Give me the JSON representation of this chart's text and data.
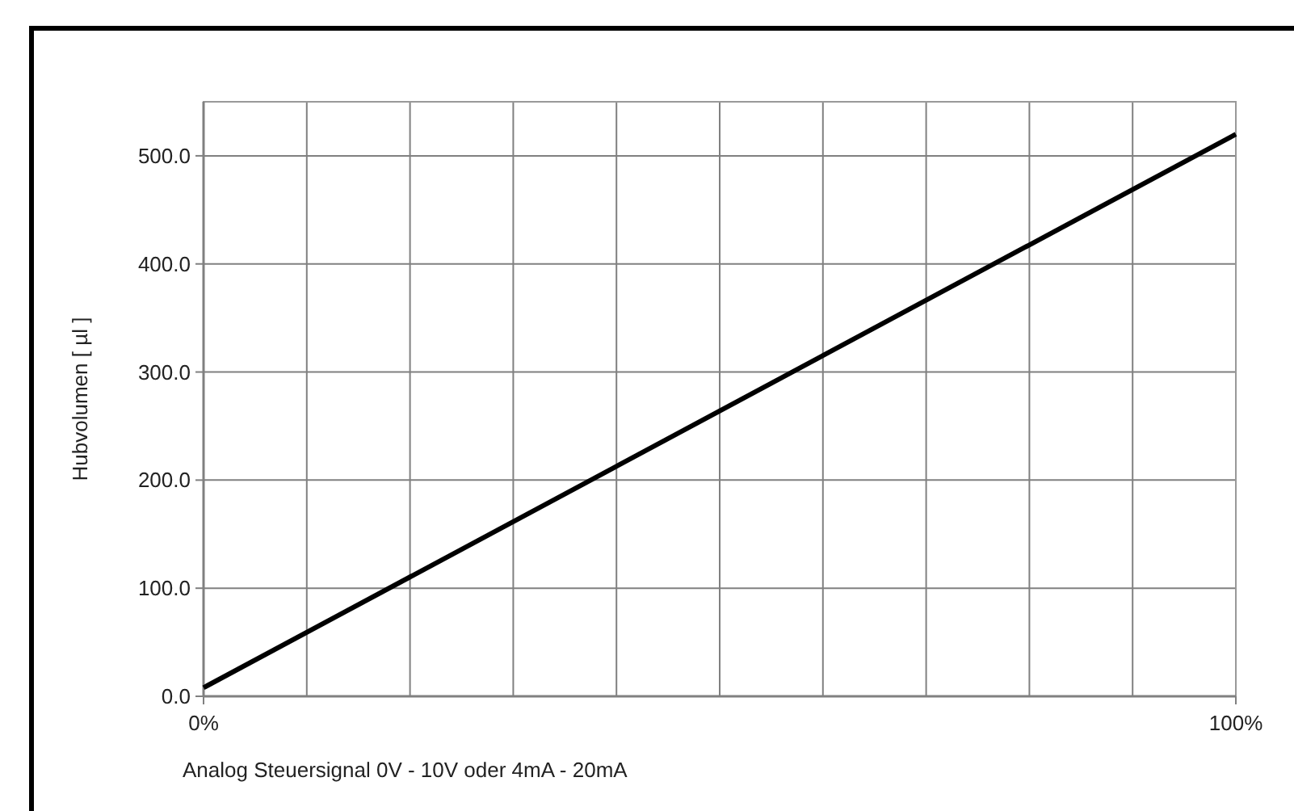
{
  "chart_data": {
    "type": "line",
    "xlabel": "Analog Steuersignal 0V - 10V oder 4mA - 20mA",
    "ylabel": "Hubvolumen [  µl ]",
    "x": [
      0,
      100
    ],
    "series": [
      {
        "color": "#000000",
        "values": [
          8,
          520
        ]
      }
    ],
    "xlim": [
      0,
      100
    ],
    "xticks": [
      {
        "value": 0,
        "label": "0%"
      },
      {
        "value": 10,
        "label": null
      },
      {
        "value": 20,
        "label": null
      },
      {
        "value": 30,
        "label": null
      },
      {
        "value": 40,
        "label": null
      },
      {
        "value": 50,
        "label": null
      },
      {
        "value": 60,
        "label": null
      },
      {
        "value": 70,
        "label": null
      },
      {
        "value": 80,
        "label": null
      },
      {
        "value": 90,
        "label": null
      },
      {
        "value": 100,
        "label": "100%"
      }
    ],
    "ylim": [
      0,
      550
    ],
    "yticks": [
      {
        "value": 0,
        "label": "0.0"
      },
      {
        "value": 100,
        "label": "100.0"
      },
      {
        "value": 200,
        "label": "200.0"
      },
      {
        "value": 300,
        "label": "300.0"
      },
      {
        "value": 400,
        "label": "400.0"
      },
      {
        "value": 500,
        "label": "500.0"
      }
    ],
    "grid": true,
    "marker": "none",
    "line_style": "solid"
  }
}
